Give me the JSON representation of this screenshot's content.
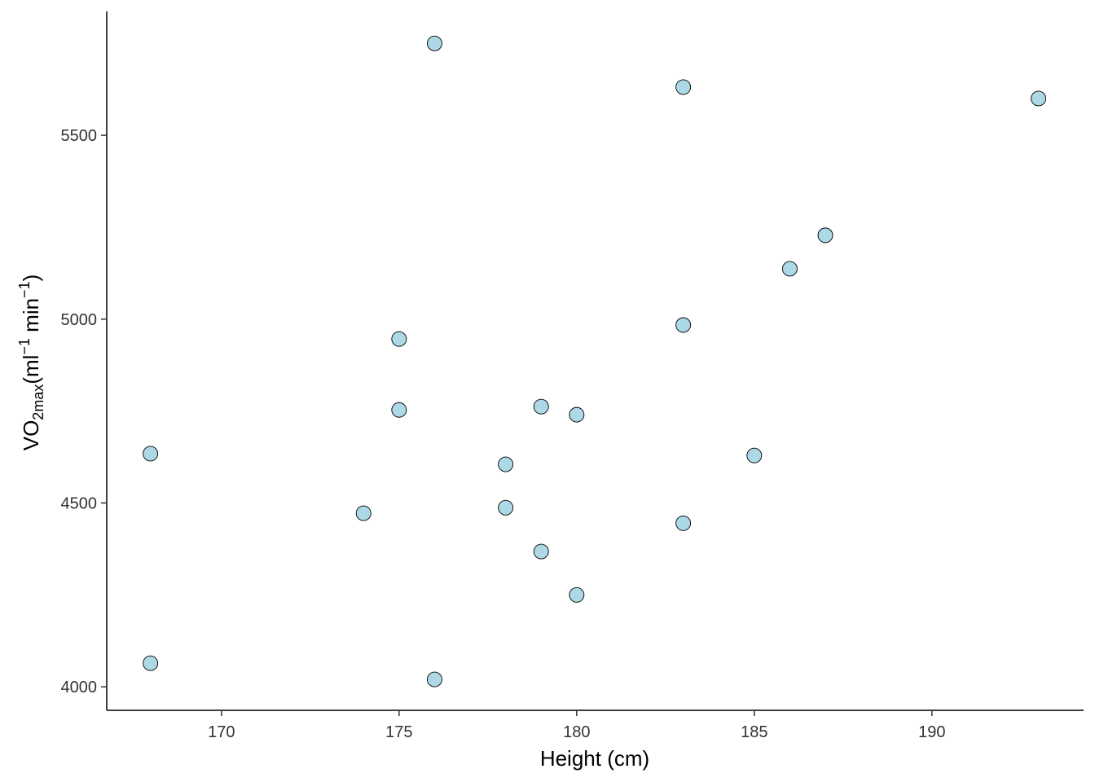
{
  "chart_data": {
    "type": "scatter",
    "title": "",
    "xlabel": "Height (cm)",
    "ylabel": {
      "base": "VO",
      "sub": "2max",
      "open": "(ml",
      "sup1": "−1",
      "mid": " min",
      "sup2": "−1",
      "close": ")"
    },
    "xlim": [
      166.77,
      194.27
    ],
    "ylim": [
      3936,
      5837
    ],
    "xticks": [
      170,
      175,
      180,
      185,
      190
    ],
    "yticks": [
      4000,
      4500,
      5000,
      5500
    ],
    "grid": false,
    "point_fill": "#ADD8E6",
    "point_stroke": "#000000",
    "points": [
      {
        "x": 168,
        "y": 4634
      },
      {
        "x": 168,
        "y": 4064
      },
      {
        "x": 174,
        "y": 4472
      },
      {
        "x": 175,
        "y": 4946
      },
      {
        "x": 175,
        "y": 4753
      },
      {
        "x": 176,
        "y": 5750
      },
      {
        "x": 176,
        "y": 4020
      },
      {
        "x": 178,
        "y": 4605
      },
      {
        "x": 178,
        "y": 4487
      },
      {
        "x": 179,
        "y": 4762
      },
      {
        "x": 179,
        "y": 4368
      },
      {
        "x": 180,
        "y": 4740
      },
      {
        "x": 180,
        "y": 4250
      },
      {
        "x": 183,
        "y": 5631
      },
      {
        "x": 183,
        "y": 4984
      },
      {
        "x": 183,
        "y": 4445
      },
      {
        "x": 185,
        "y": 4629
      },
      {
        "x": 186,
        "y": 5137
      },
      {
        "x": 187,
        "y": 5228
      },
      {
        "x": 193,
        "y": 5600
      }
    ]
  }
}
